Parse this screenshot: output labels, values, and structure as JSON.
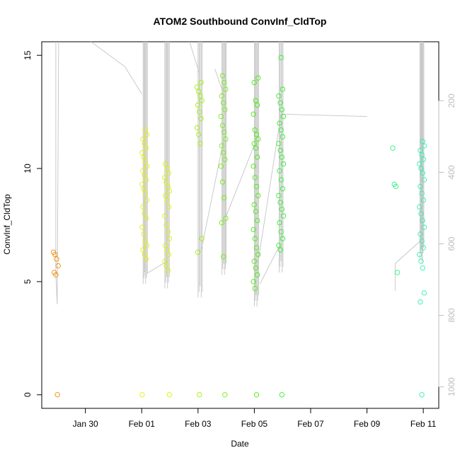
{
  "chart_data": {
    "type": "scatter",
    "title": "ATOM2 Southbound ConvInf_CldTop",
    "xlabel": "Date",
    "ylabel": "ConvInf_CldTop",
    "x_ticks": [
      "Jan 30",
      "Feb 01",
      "Feb 03",
      "Feb 05",
      "Feb 07",
      "Feb 09",
      "Feb 11"
    ],
    "x_tick_days": [
      30,
      32,
      34,
      36,
      38,
      40,
      42
    ],
    "xlim_days": [
      28.45,
      42.55
    ],
    "ylim": [
      -0.6,
      15.6
    ],
    "y_ticks": [
      0,
      5,
      10,
      15
    ],
    "y2_ticks": [
      200,
      400,
      600,
      800,
      1000
    ],
    "y2_reversed": true,
    "y2_color": "#bdbdbd",
    "trace_color": "#c4c4c4",
    "series": [
      {
        "day": 28.95,
        "color": "#f08a00",
        "values": [
          6.3,
          6.2,
          6.0,
          5.7,
          5.4,
          5.3,
          0
        ]
      },
      {
        "day": 32.1,
        "color": "#e2f000",
        "values": [
          11.7,
          11.5,
          11.3,
          11.1,
          10.9,
          10.7,
          10.5,
          10.3,
          10.1,
          9.9,
          9.7,
          9.5,
          9.3,
          9.1,
          8.9,
          8.6,
          8.3,
          8.0,
          7.8,
          7.4,
          7.1,
          6.8,
          6.6,
          6.4,
          6.2,
          6.0,
          0
        ]
      },
      {
        "day": 32.9,
        "color": "#d8f200",
        "values": [
          10.2,
          10.0,
          9.8,
          9.6,
          9.4,
          9.2,
          9.0,
          8.8,
          8.6,
          8.3,
          7.9,
          7.5,
          7.2,
          6.9,
          6.6,
          6.4,
          6.2,
          5.9,
          5.7,
          5.5,
          0
        ]
      },
      {
        "day": 34.05,
        "color": "#9cf000",
        "values": [
          13.8,
          13.6,
          13.4,
          13.2,
          13.0,
          12.8,
          12.5,
          12.2,
          11.8,
          11.5,
          11.1,
          6.9,
          6.3,
          0
        ]
      },
      {
        "day": 34.9,
        "color": "#6ef000",
        "values": [
          14.1,
          13.8,
          13.5,
          13.2,
          12.9,
          12.6,
          12.3,
          11.9,
          11.6,
          11.3,
          11.0,
          10.7,
          10.4,
          10.1,
          9.4,
          8.7,
          7.8,
          7.6,
          6.1,
          0
        ]
      },
      {
        "day": 36.05,
        "color": "#40f000",
        "values": [
          14.0,
          13.8,
          13.0,
          12.8,
          12.4,
          11.7,
          11.5,
          11.3,
          11.1,
          10.9,
          10.5,
          10.1,
          9.6,
          9.2,
          8.8,
          8.4,
          8.1,
          7.7,
          7.3,
          6.9,
          6.5,
          6.2,
          5.9,
          5.6,
          5.3,
          5.0,
          4.7,
          0
        ]
      },
      {
        "day": 36.95,
        "color": "#2af02a",
        "values": [
          14.9,
          13.5,
          13.2,
          12.9,
          12.6,
          12.3,
          12.0,
          11.7,
          11.4,
          11.1,
          10.8,
          10.5,
          10.2,
          9.9,
          9.5,
          9.1,
          8.8,
          8.5,
          8.2,
          7.9,
          7.6,
          7.2,
          6.9,
          6.6,
          6.4,
          0
        ]
      },
      {
        "day": 41.0,
        "color": "#2af080",
        "values": [
          10.9,
          9.3,
          9.2,
          5.4
        ]
      },
      {
        "day": 41.95,
        "color": "#2af0b0",
        "values": [
          11.2,
          11.0,
          10.8,
          10.6,
          10.4,
          10.2,
          10.0,
          9.8,
          9.5,
          9.2,
          8.9,
          8.6,
          8.3,
          8.0,
          7.7,
          7.4,
          7.1,
          6.8,
          6.5,
          6.2,
          5.9,
          5.6,
          4.5,
          4.1,
          0
        ]
      }
    ]
  }
}
